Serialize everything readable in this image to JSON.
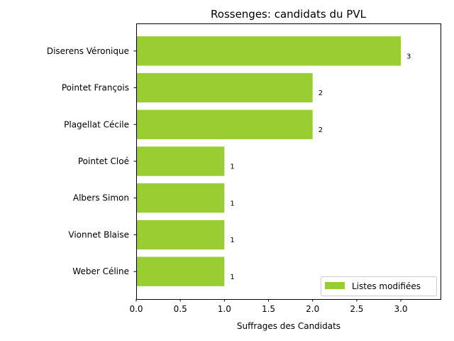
{
  "chart_data": {
    "type": "bar",
    "orientation": "horizontal",
    "title": "Rossenges: candidats du PVL",
    "xlabel": "Suffrages des Candidats",
    "ylabel": "",
    "categories": [
      "Diserens Véronique",
      "Pointet François",
      "Plagellat Cécile",
      "Pointet Cloé",
      "Albers Simon",
      "Vionnet Blaise",
      "Weber Céline"
    ],
    "series": [
      {
        "name": "Listes modifiées",
        "values": [
          3,
          2,
          2,
          1,
          1,
          1,
          1
        ],
        "color": "#9acd32"
      }
    ],
    "value_labels": [
      "3",
      "2",
      "2",
      "1",
      "1",
      "1",
      "1"
    ],
    "xlim": [
      0,
      3.45
    ],
    "xticks": [
      0.0,
      0.5,
      1.0,
      1.5,
      2.0,
      2.5,
      3.0
    ],
    "xtick_labels": [
      "0.0",
      "0.5",
      "1.0",
      "1.5",
      "2.0",
      "2.5",
      "3.0"
    ],
    "grid": false,
    "legend_position": "lower-right"
  }
}
